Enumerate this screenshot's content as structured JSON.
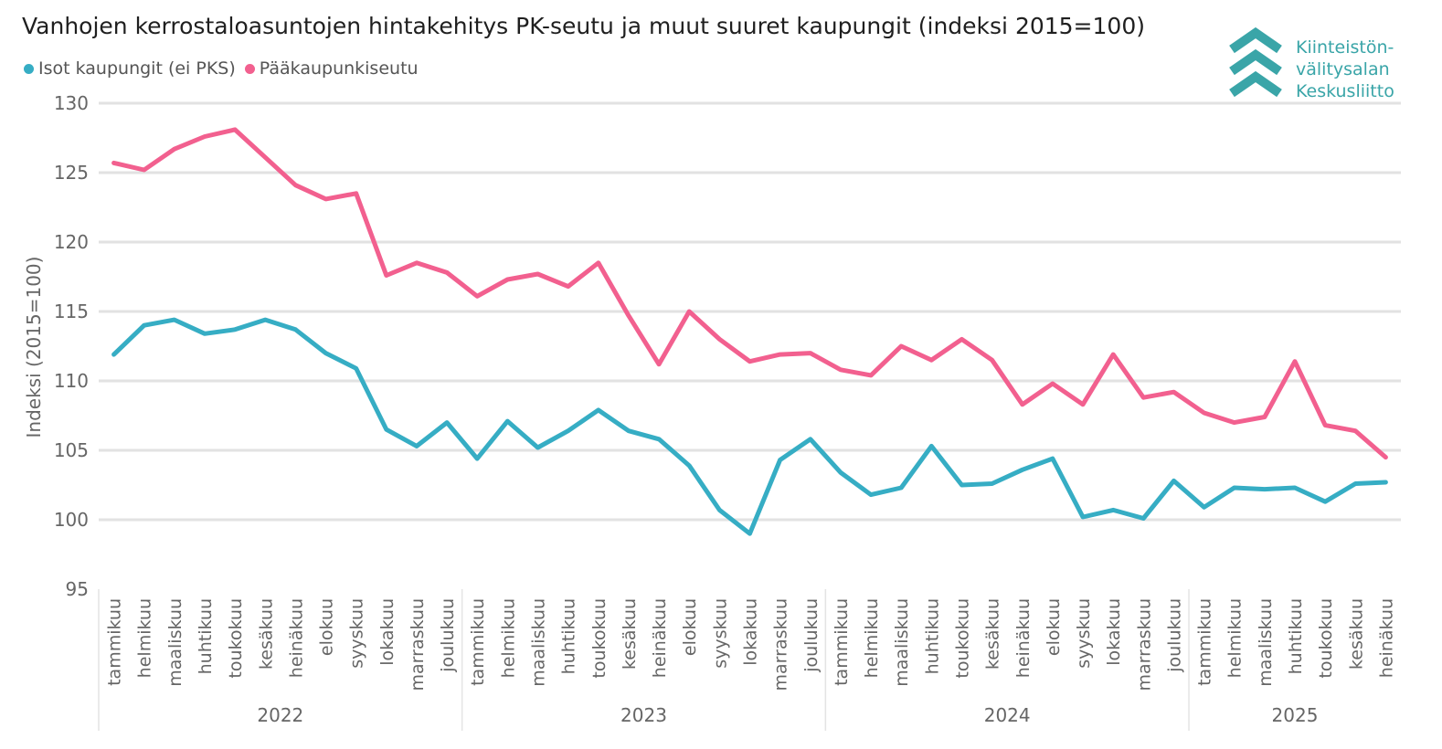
{
  "title": "Vanhojen kerrostaloasuntojen hintakehitys PK-seutu ja muut suuret kaupungit (indeksi 2015=100)",
  "logo": {
    "lines": [
      "Kiinteistön-",
      "välitysalan",
      "Keskusliitto"
    ],
    "color": "#3aa5a8"
  },
  "colors": {
    "isot": "#36adc4",
    "pks": "#f2608f",
    "grid": "#e2e2e2",
    "axis_text": "#666666"
  },
  "chart_data": {
    "type": "line",
    "title": "Vanhojen kerrostaloasuntojen hintakehitys PK-seutu ja muut suuret kaupungit (indeksi 2015=100)",
    "ylabel": "Indeksi (2015=100)",
    "xlabel": "",
    "ylim": [
      95,
      130
    ],
    "yticks": [
      95,
      100,
      105,
      110,
      115,
      120,
      125,
      130
    ],
    "grid": true,
    "legend_position": "top-left",
    "years": [
      {
        "label": "2022",
        "months": 12
      },
      {
        "label": "2023",
        "months": 12
      },
      {
        "label": "2024",
        "months": 12
      },
      {
        "label": "2025",
        "months": 7
      }
    ],
    "categories": [
      "tammikuu",
      "helmikuu",
      "maaliskuu",
      "huhtikuu",
      "toukokuu",
      "kesäkuu",
      "heinäkuu",
      "elokuu",
      "syyskuu",
      "lokakuu",
      "marraskuu",
      "joulukuu",
      "tammikuu",
      "helmikuu",
      "maaliskuu",
      "huhtikuu",
      "toukokuu",
      "kesäkuu",
      "heinäkuu",
      "elokuu",
      "syyskuu",
      "lokakuu",
      "marraskuu",
      "joulukuu",
      "tammikuu",
      "helmikuu",
      "maaliskuu",
      "huhtikuu",
      "toukokuu",
      "kesäkuu",
      "heinäkuu",
      "elokuu",
      "syyskuu",
      "lokakuu",
      "marraskuu",
      "joulukuu",
      "tammikuu",
      "helmikuu",
      "maaliskuu",
      "huhtikuu",
      "toukokuu",
      "kesäkuu",
      "heinäkuu"
    ],
    "series": [
      {
        "name": "Isot kaupungit (ei PKS)",
        "color": "#36adc4",
        "values": [
          111.9,
          114.0,
          114.4,
          113.4,
          113.7,
          114.4,
          113.7,
          112.0,
          110.9,
          106.5,
          105.3,
          107.0,
          104.4,
          107.1,
          105.2,
          106.4,
          107.9,
          106.4,
          105.8,
          103.9,
          100.7,
          99.0,
          104.3,
          105.8,
          103.4,
          101.8,
          102.3,
          105.3,
          102.5,
          102.6,
          103.6,
          104.4,
          100.2,
          100.7,
          100.1,
          102.8,
          100.9,
          102.3,
          102.2,
          102.3,
          101.3,
          102.6,
          102.7
        ]
      },
      {
        "name": "Pääkaupunkiseutu",
        "color": "#f2608f",
        "values": [
          125.7,
          125.2,
          126.7,
          127.6,
          128.1,
          126.1,
          124.1,
          123.1,
          123.5,
          117.6,
          118.5,
          117.8,
          116.1,
          117.3,
          117.7,
          116.8,
          118.5,
          114.7,
          111.2,
          115.0,
          113.0,
          111.4,
          111.9,
          112.0,
          110.8,
          110.4,
          112.5,
          111.5,
          113.0,
          111.5,
          108.3,
          109.8,
          108.3,
          111.9,
          108.8,
          109.2,
          107.7,
          107.0,
          107.4,
          111.4,
          106.8,
          106.4,
          104.5
        ]
      }
    ]
  }
}
